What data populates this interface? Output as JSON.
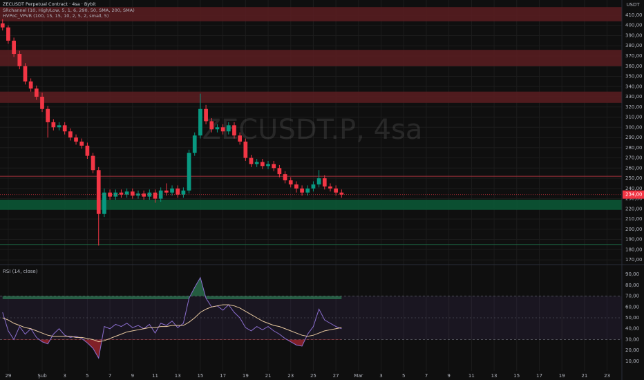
{
  "header": {
    "symbol": "ZECUSDT Perpetual Contract · 4sa · Bybit",
    "indicators": [
      "SRchannel (10, High/Low, 5, 1, 6, 290, 50, SMA, 200, SMA)",
      "HVPoC_VPVR (100, 15, 15, 10, 2, 5, 2, small, 5)"
    ],
    "watermark": "ZECUSDT.P, 4sa",
    "currency": "USDT"
  },
  "chart_data": [
    {
      "type": "candlestick",
      "up_color": "#089981",
      "down_color": "#f23645",
      "x": [
        -0.5,
        0,
        0.5,
        1,
        1.5,
        2,
        2.5,
        3,
        3.5,
        4,
        4.5,
        5,
        5.5,
        6,
        6.5,
        7,
        7.5,
        8,
        8.5,
        9,
        9.5,
        10,
        10.5,
        11,
        11.5,
        12,
        12.5,
        13,
        13.5,
        14,
        14.5,
        15,
        15.5,
        16,
        16.5,
        17,
        17.5,
        18,
        18.5,
        19,
        19.5,
        20,
        20.5,
        21,
        21.5,
        22,
        22.5,
        23,
        23.5,
        24,
        24.5,
        25,
        25.5,
        26,
        26.5,
        27,
        27.5,
        28,
        28.5,
        29,
        29.5
      ],
      "open": [
        402,
        398,
        385,
        372,
        360,
        345,
        338,
        330,
        318,
        305,
        300,
        302,
        296,
        290,
        286,
        282,
        272,
        258,
        215,
        236,
        232,
        236,
        234,
        237,
        233,
        235,
        232,
        236,
        230,
        238,
        236,
        240,
        234,
        238,
        275,
        292,
        318,
        306,
        298,
        300,
        296,
        302,
        292,
        286,
        270,
        264,
        266,
        262,
        264,
        260,
        254,
        248,
        244,
        240,
        236,
        240,
        244,
        250,
        242,
        240,
        236
      ],
      "high": [
        406,
        400,
        388,
        375,
        363,
        348,
        341,
        334,
        321,
        308,
        305,
        305,
        299,
        293,
        289,
        285,
        275,
        261,
        240,
        239,
        239,
        239,
        240,
        240,
        238,
        238,
        239,
        239,
        241,
        245,
        243,
        243,
        241,
        278,
        295,
        333,
        322,
        309,
        303,
        303,
        305,
        305,
        295,
        289,
        273,
        269,
        269,
        267,
        267,
        263,
        257,
        251,
        247,
        243,
        243,
        247,
        258,
        253,
        245,
        243,
        239
      ],
      "low": [
        395,
        382,
        369,
        357,
        342,
        335,
        327,
        315,
        290,
        297,
        297,
        293,
        287,
        283,
        279,
        269,
        255,
        184,
        212,
        229,
        229,
        231,
        231,
        230,
        230,
        229,
        229,
        226,
        227,
        233,
        233,
        231,
        231,
        235,
        272,
        289,
        303,
        295,
        295,
        293,
        293,
        289,
        283,
        267,
        261,
        261,
        259,
        259,
        257,
        251,
        245,
        241,
        236,
        233,
        233,
        237,
        241,
        239,
        237,
        233,
        231
      ],
      "close": [
        398,
        385,
        372,
        360,
        345,
        338,
        330,
        318,
        305,
        300,
        302,
        296,
        290,
        286,
        282,
        272,
        258,
        215,
        236,
        232,
        236,
        234,
        237,
        233,
        235,
        232,
        236,
        230,
        238,
        236,
        240,
        234,
        238,
        275,
        292,
        318,
        306,
        298,
        300,
        296,
        302,
        292,
        286,
        270,
        264,
        266,
        262,
        264,
        260,
        254,
        248,
        244,
        240,
        236,
        240,
        244,
        250,
        242,
        240,
        236,
        234
      ],
      "xlim": [
        -0.73,
        54.31
      ],
      "ylim": [
        165.3,
        424.9
      ],
      "xticks": [
        {
          "value": 0,
          "label": "29"
        },
        {
          "value": 3,
          "label": "Şub"
        },
        {
          "value": 5,
          "label": "3"
        },
        {
          "value": 7,
          "label": "5"
        },
        {
          "value": 9,
          "label": "7"
        },
        {
          "value": 11,
          "label": "9"
        },
        {
          "value": 13,
          "label": "11"
        },
        {
          "value": 15,
          "label": "13"
        },
        {
          "value": 17,
          "label": "15"
        },
        {
          "value": 19,
          "label": "17"
        },
        {
          "value": 21,
          "label": "19"
        },
        {
          "value": 23,
          "label": "21"
        },
        {
          "value": 25,
          "label": "23"
        },
        {
          "value": 27,
          "label": "25"
        },
        {
          "value": 29,
          "label": "27"
        },
        {
          "value": 31,
          "label": "Mar"
        },
        {
          "value": 33,
          "label": "3"
        },
        {
          "value": 35,
          "label": "5"
        },
        {
          "value": 37,
          "label": "7"
        },
        {
          "value": 39,
          "label": "9"
        },
        {
          "value": 41,
          "label": "11"
        },
        {
          "value": 43,
          "label": "13"
        },
        {
          "value": 45,
          "label": "15"
        },
        {
          "value": 47,
          "label": "17"
        },
        {
          "value": 49,
          "label": "19"
        },
        {
          "value": 51,
          "label": "21"
        },
        {
          "value": 53,
          "label": "23"
        }
      ],
      "yticks": [
        {
          "value": 170,
          "label": "170,00"
        },
        {
          "value": 180,
          "label": "180,00"
        },
        {
          "value": 190,
          "label": "190,00"
        },
        {
          "value": 200,
          "label": "200,00"
        },
        {
          "value": 210,
          "label": "210,00"
        },
        {
          "value": 220,
          "label": "220,00"
        },
        {
          "value": 230,
          "label": "230,00"
        },
        {
          "value": 240,
          "label": "240,00"
        },
        {
          "value": 250,
          "label": "250,00"
        },
        {
          "value": 260,
          "label": "260,00"
        },
        {
          "value": 270,
          "label": "270,00"
        },
        {
          "value": 280,
          "label": "280,00"
        },
        {
          "value": 290,
          "label": "290,00"
        },
        {
          "value": 300,
          "label": "300,00"
        },
        {
          "value": 310,
          "label": "310,00"
        },
        {
          "value": 320,
          "label": "320,00"
        },
        {
          "value": 330,
          "label": "330,00"
        },
        {
          "value": 340,
          "label": "340,00"
        },
        {
          "value": 350,
          "label": "350,00"
        },
        {
          "value": 360,
          "label": "360,00"
        },
        {
          "value": 370,
          "label": "370,00"
        },
        {
          "value": 380,
          "label": "380,00"
        },
        {
          "value": 390,
          "label": "390,00"
        },
        {
          "value": 400,
          "label": "400,00"
        },
        {
          "value": 410,
          "label": "410,00"
        }
      ],
      "zones": [
        {
          "low": 404,
          "high": 418,
          "color": "#5a1d21"
        },
        {
          "low": 360,
          "high": 376,
          "color": "#5a1d21"
        },
        {
          "low": 324,
          "high": 335,
          "color": "#5a1d21"
        },
        {
          "low": 219,
          "high": 229,
          "color": "#0b5a37"
        }
      ],
      "levels": [
        {
          "value": 252,
          "color": "#a3303a"
        },
        {
          "value": 185,
          "color": "#1d7048"
        }
      ],
      "last_price": {
        "value": 234,
        "label": "234,00",
        "color": "#f23645"
      }
    },
    {
      "type": "line",
      "title": "RSI (14, close)",
      "ylim": [
        1.1,
        98.9
      ],
      "yticks": [
        {
          "value": 10,
          "label": "10,00"
        },
        {
          "value": 20,
          "label": "20,00"
        },
        {
          "value": 30,
          "label": "30,00"
        },
        {
          "value": 40,
          "label": "40,00"
        },
        {
          "value": 50,
          "label": "50,00"
        },
        {
          "value": 60,
          "label": "60,00"
        },
        {
          "value": 70,
          "label": "70,00"
        },
        {
          "value": 80,
          "label": "80,00"
        },
        {
          "value": 90,
          "label": "90,00"
        }
      ],
      "band": [
        30,
        70
      ],
      "midline": 50,
      "band_color": "#7e57c2",
      "series": [
        {
          "color": "#8c6fd0",
          "values": [
            55,
            38,
            30,
            42,
            35,
            40,
            32,
            28,
            26,
            35,
            40,
            34,
            32,
            33,
            31,
            27,
            22,
            13,
            42,
            40,
            44,
            42,
            45,
            41,
            43,
            40,
            44,
            36,
            45,
            43,
            47,
            41,
            45,
            68,
            78,
            87,
            68,
            60,
            61,
            57,
            62,
            55,
            50,
            41,
            38,
            42,
            39,
            42,
            38,
            35,
            31,
            28,
            25,
            24,
            35,
            42,
            58,
            48,
            45,
            42,
            40
          ]
        },
        {
          "color": "#e8c9a0",
          "values": [
            50,
            48,
            45,
            43,
            41,
            40,
            38,
            36,
            34,
            33,
            33,
            33,
            33,
            32,
            32,
            31,
            30,
            28,
            29,
            31,
            33,
            35,
            37,
            38,
            39,
            40,
            41,
            41,
            42,
            42,
            43,
            43,
            43,
            46,
            50,
            55,
            58,
            60,
            61,
            62,
            62,
            61,
            59,
            56,
            53,
            50,
            47,
            45,
            43,
            42,
            40,
            38,
            36,
            34,
            33,
            34,
            36,
            38,
            39,
            40,
            41
          ]
        }
      ]
    }
  ]
}
